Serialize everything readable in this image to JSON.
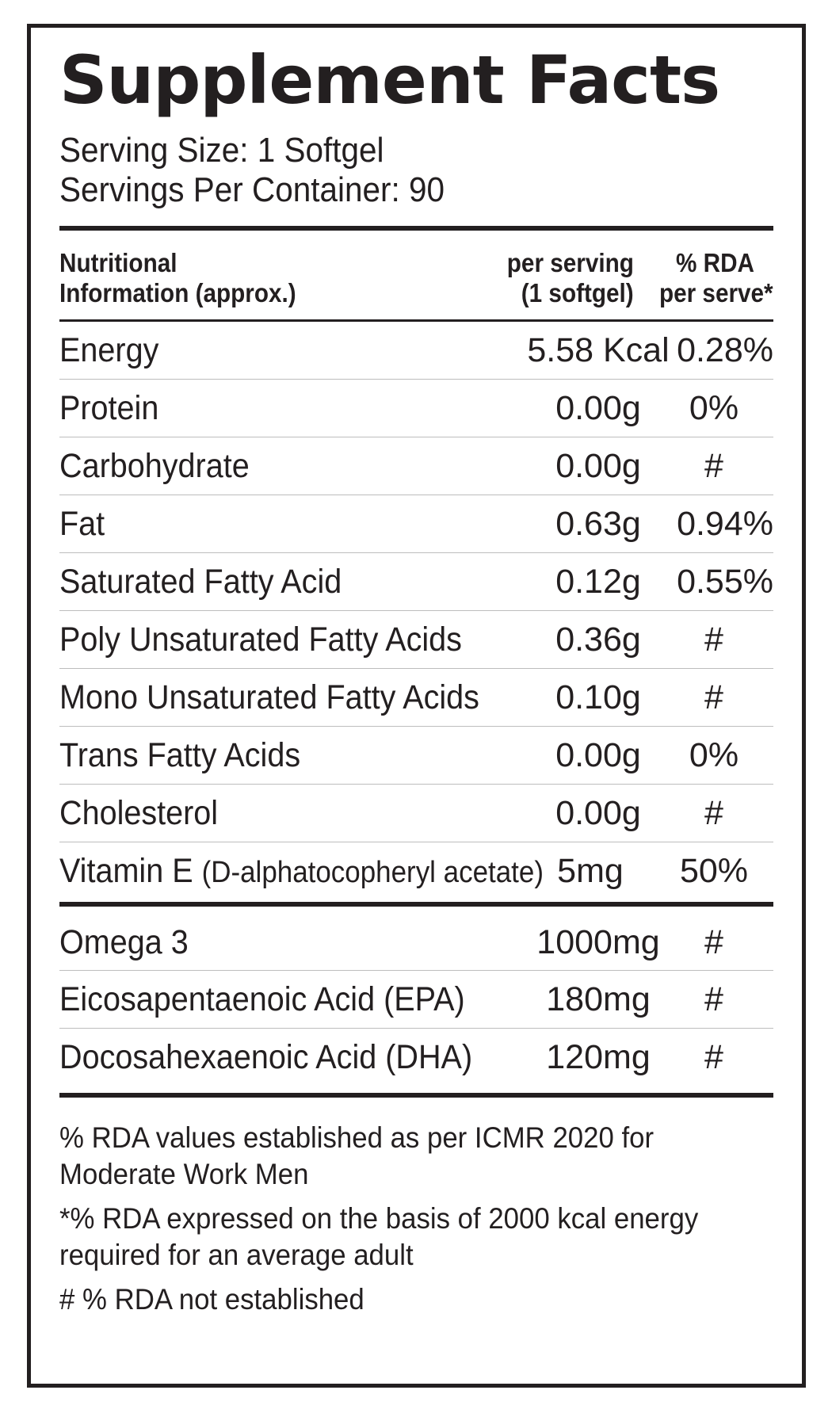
{
  "title": "Supplement Facts",
  "serving_size": "Serving Size: 1 Softgel",
  "servings_per_container": "Servings Per Container: 90",
  "header": {
    "col1_line1": "Nutritional",
    "col1_line2": "Information (approx.)",
    "col2_line1": "per serving",
    "col2_line2": "(1 softgel)",
    "col3_line1": "% RDA",
    "col3_line2": "per serve*"
  },
  "nutrients": [
    {
      "name": "Energy",
      "amount": "5.58 Kcal",
      "rda": "0.28%"
    },
    {
      "name": "Protein",
      "amount": "0.00g",
      "rda": "0%"
    },
    {
      "name": "Carbohydrate",
      "amount": "0.00g",
      "rda": "#"
    },
    {
      "name": "Fat",
      "amount": "0.63g",
      "rda": "0.94%"
    },
    {
      "name": "Saturated Fatty Acid",
      "amount": "0.12g",
      "rda": "0.55%"
    },
    {
      "name": "Poly Unsaturated Fatty Acids",
      "amount": "0.36g",
      "rda": "#"
    },
    {
      "name": "Mono Unsaturated Fatty Acids",
      "amount": "0.10g",
      "rda": "#"
    },
    {
      "name": "Trans Fatty Acids",
      "amount": "0.00g",
      "rda": "0%"
    },
    {
      "name": "Cholesterol",
      "amount": "0.00g",
      "rda": "#"
    },
    {
      "name": "Vitamin E",
      "name_sub": "(D-alphatocopheryl acetate)",
      "amount": "5mg",
      "rda": "50%"
    }
  ],
  "omega": [
    {
      "name": "Omega 3",
      "amount": "1000mg",
      "rda": "#"
    },
    {
      "name": "Eicosapentaenoic Acid (EPA)",
      "amount": "180mg",
      "rda": "#"
    },
    {
      "name": "Docosahexaenoic Acid (DHA)",
      "amount": "120mg",
      "rda": "#"
    }
  ],
  "footnotes": {
    "line1": "% RDA values established as per ICMR 2020 for",
    "line2": "Moderate Work Men",
    "line3": "*% RDA expressed on the basis of 2000 kcal energy",
    "line4": "required for an average adult",
    "line5": "# % RDA not established"
  }
}
